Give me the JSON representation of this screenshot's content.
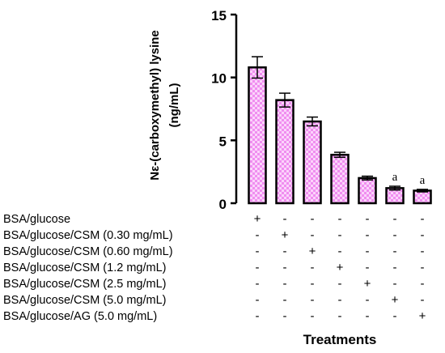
{
  "chart_data": {
    "type": "bar",
    "ylabel_line1": "Nε-(carboxymethyl) lysine",
    "ylabel_line2": "(ng/mL)",
    "xlabel": "Treatments",
    "ylim": [
      0,
      15
    ],
    "yticks": [
      0,
      5,
      10,
      15
    ],
    "categories": [
      "BSA/glucose",
      "BSA/glucose/CSM (0.30 mg/mL)",
      "BSA/glucose/CSM (0.60 mg/mL)",
      "BSA/glucose/CSM (1.2 mg/mL)",
      "BSA/glucose/CSM (2.5 mg/mL)",
      "BSA/glucose/CSM (5.0 mg/mL)",
      "BSA/glucose/AG  (5.0 mg/mL)"
    ],
    "values": [
      10.8,
      8.2,
      6.5,
      3.85,
      2.0,
      1.2,
      1.0
    ],
    "errors": [
      0.85,
      0.55,
      0.35,
      0.2,
      0.15,
      0.15,
      0.1
    ],
    "annotations": [
      "",
      "",
      "",
      "",
      "",
      "a",
      "a"
    ],
    "plus_sign": "+",
    "minus_sign": "-",
    "bar_fill": "#f08ef0",
    "bar_checker": "#fbd3fb",
    "bar_stroke": "#000000"
  }
}
